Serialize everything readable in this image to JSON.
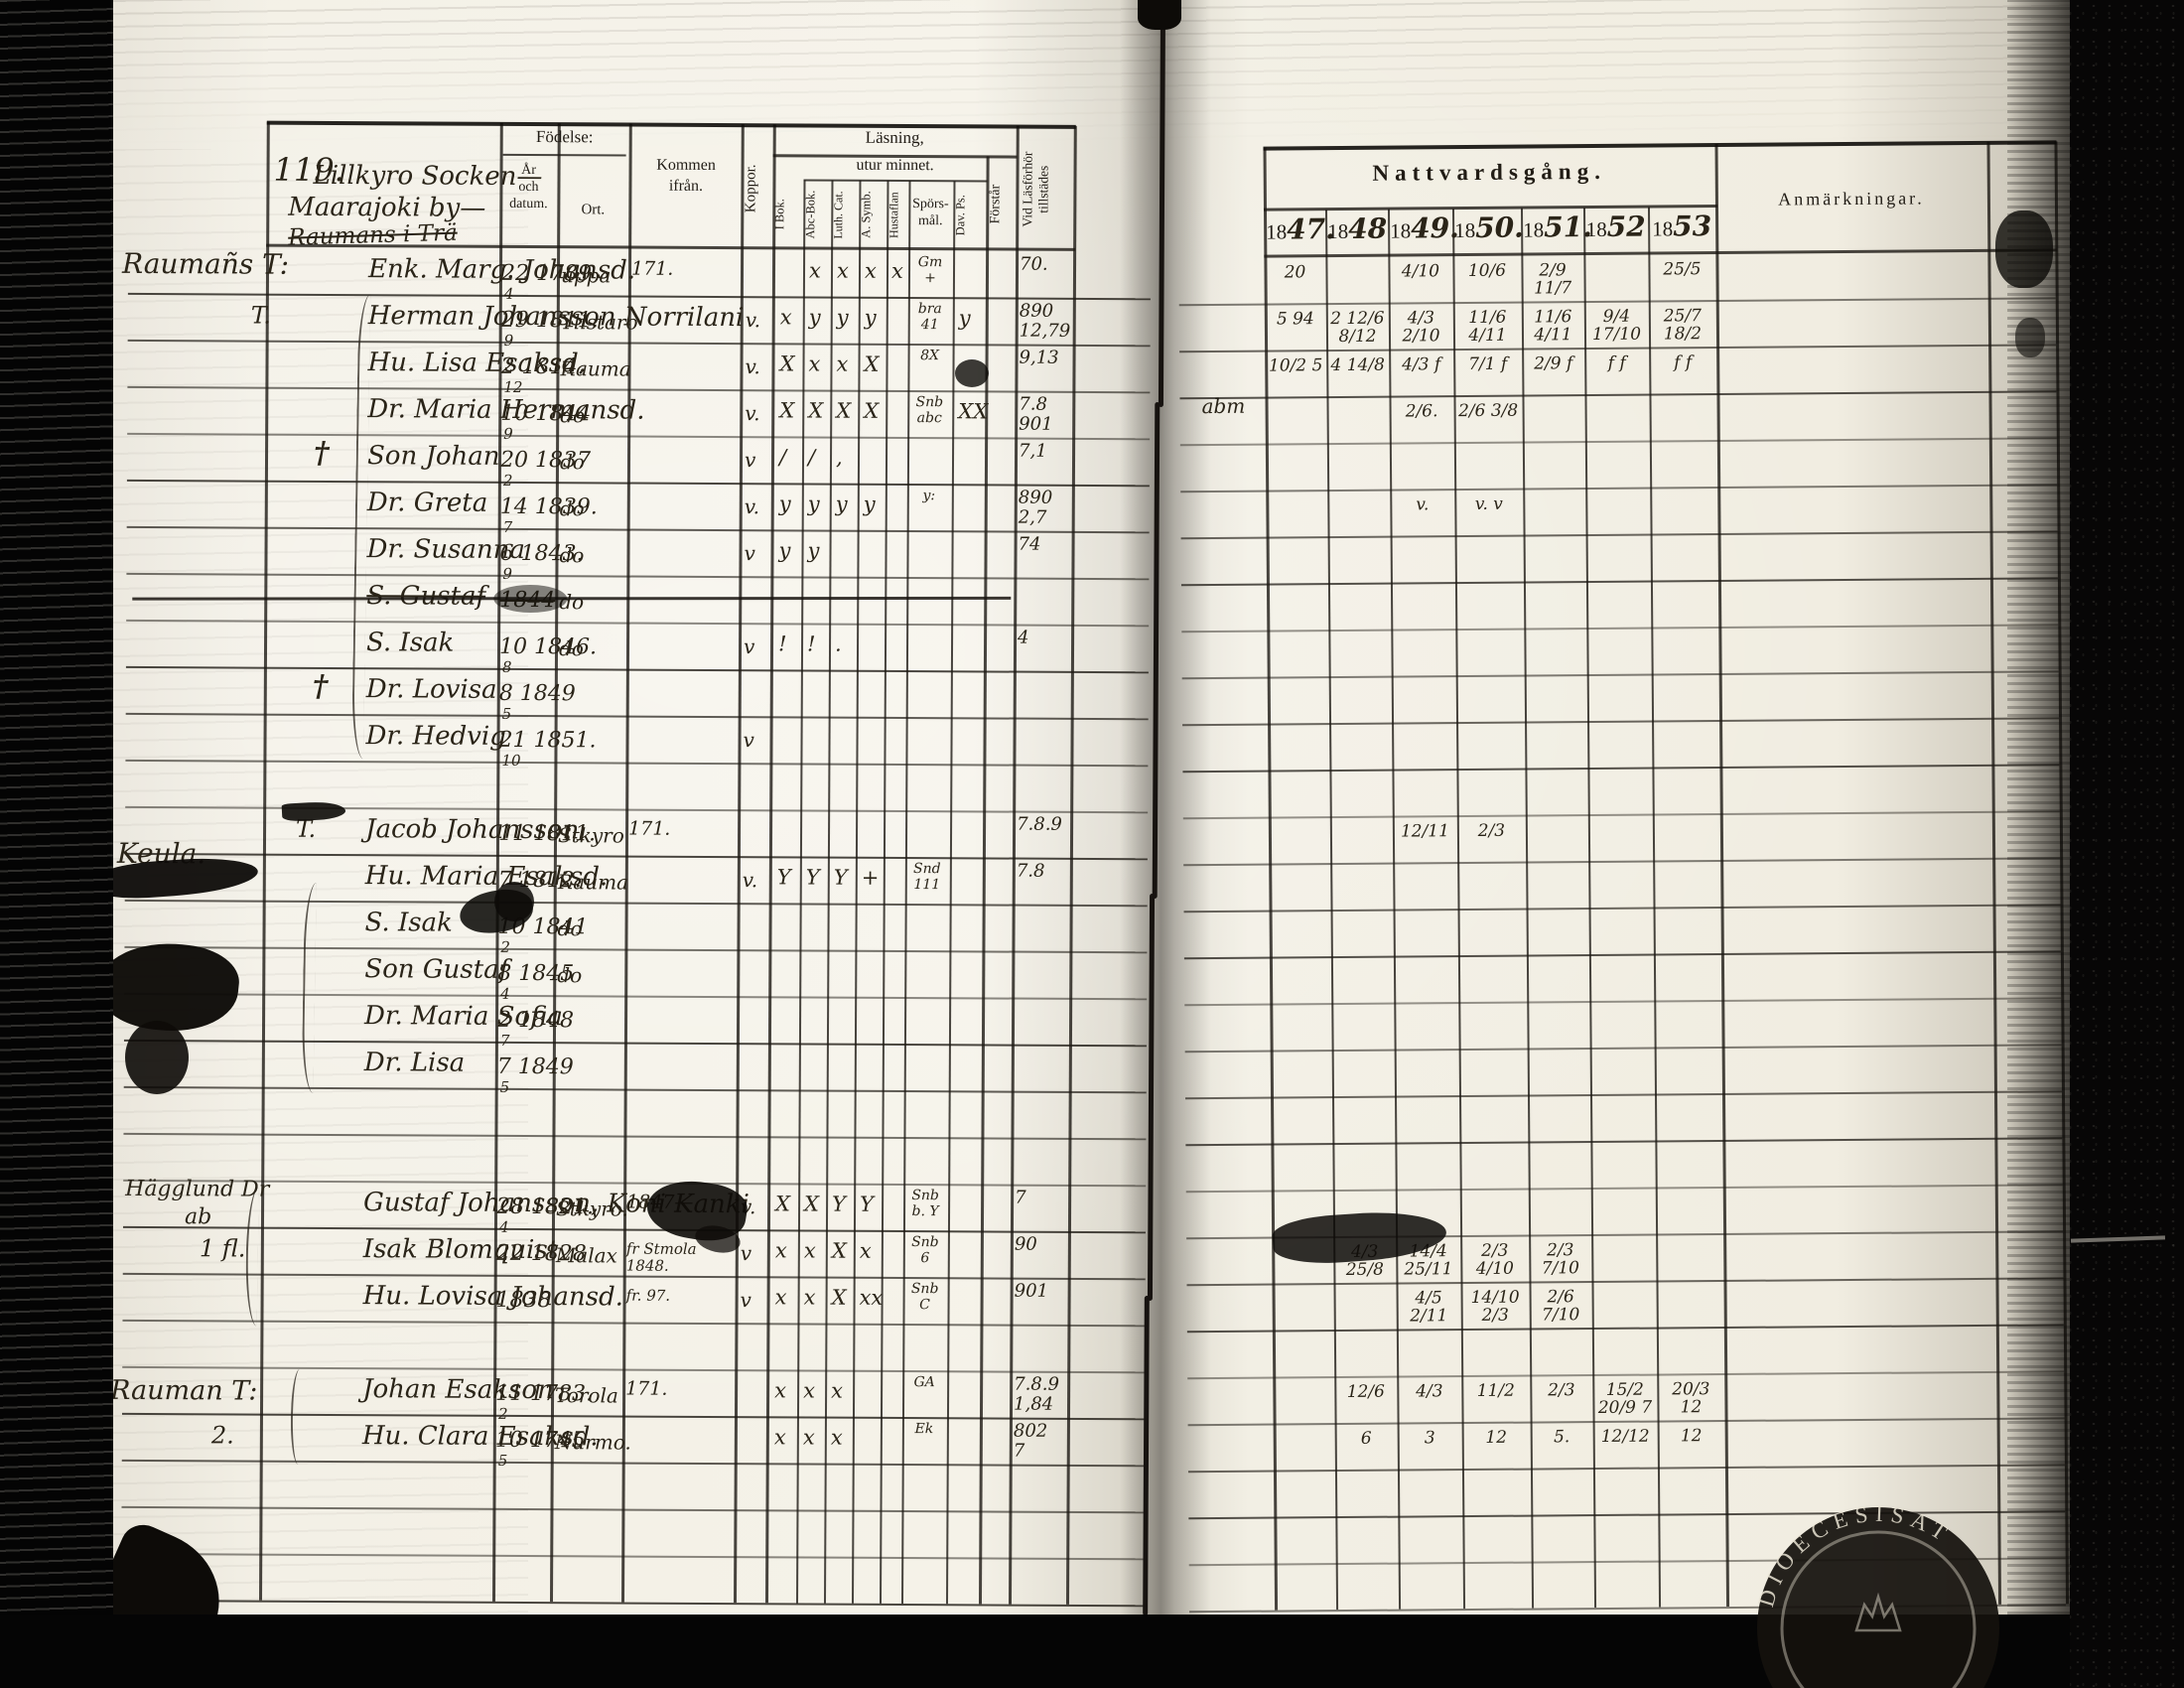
{
  "document": {
    "page_number": "119.",
    "title_lines": [
      "Lillkyro Socken—",
      "Maarajoki by—",
      "Raumans i Trä"
    ]
  },
  "left_page": {
    "headers": {
      "fodelse": "Födelse:",
      "ar_och_datum": "År\noch\ndatum.",
      "ort": "Ort.",
      "kommen_ifran": "Kommen\nifrån.",
      "koppor": "Koppor.",
      "lasning": "Läsning,",
      "utur_minnet": "utur minnet.",
      "i_bok": "I Bok.",
      "abc_bok": "Abc-Bok.",
      "luth_cat": "Luth. Cat.",
      "a_symb": "A. Symb.",
      "hustaflan": "Hustaflan",
      "sporsmal": "Spörs-\nmål.",
      "dav_ps": "Dav. Ps.",
      "forstar": "Förstår",
      "vid_lasforhor": "Vid Läsförhör\ntillstädes"
    },
    "groups": [
      {
        "margin_label": "Raumañs T:",
        "rows": [
          {
            "n": 0,
            "name": "Enk. Marg. Johansd.",
            "date": "22 1789",
            "day": "4",
            "ort": "uppa",
            "kommen": "171.",
            "marks": [
              "",
              "x",
              "x",
              "x",
              "x",
              "Gm +",
              "",
              ""
            ],
            "vid": [
              "70."
            ],
            "natt": [
              "20",
              "",
              "4/10",
              "10/6",
              "2/9 11/7",
              "",
              "25/5"
            ]
          },
          {
            "n": 1,
            "margin": "T.",
            "name": "Herman Johansson Norrilani",
            "date": "29 1811.",
            "day": "9",
            "ort": "Ylistaro",
            "koppor": "v.",
            "marks": [
              "x",
              "y",
              "y",
              "y",
              "",
              "bra 41",
              "y",
              ""
            ],
            "vid": [
              "890",
              "12,79"
            ],
            "natt": [
              "5 94",
              "2 12/6 8/12",
              "4/3 2/10",
              "11/6 4/11",
              "11/6 4/11",
              "9/4 17/10",
              "25/7 18/2"
            ]
          },
          {
            "n": 2,
            "name": "Hu. Lisa Esaksd.",
            "date": "2 1814.",
            "day": "12",
            "ort": "Rauma",
            "koppor": "v.",
            "marks": [
              "X",
              "x",
              "x",
              "X",
              "",
              "8X",
              "",
              ""
            ],
            "vid": [
              "9,13"
            ],
            "natt": [
              "10/2 5",
              "4 14/8",
              "4/3 f",
              "7/1 f",
              "2/9 f",
              "f f",
              "f f"
            ]
          },
          {
            "n": 3,
            "name": "Dr. Maria Hermansd.",
            "date": "10 1844",
            "day": "9",
            "ort": "do",
            "koppor": "v.",
            "marks": [
              "X",
              "X",
              "X",
              "X",
              "",
              "Snb abc",
              "XX",
              ""
            ],
            "vid": [
              "7.8",
              "901"
            ],
            "natt": [
              "",
              "",
              "2/6.",
              "2/6 3/8",
              "",
              "",
              ""
            ]
          },
          {
            "n": 4,
            "cross": true,
            "name": "Son Johan",
            "date": "20 1837",
            "day": "2",
            "ort": "do",
            "koppor": "v",
            "marks": [
              "/",
              "/",
              ",",
              "",
              "",
              "",
              "",
              ""
            ],
            "vid": [
              "7,1"
            ]
          },
          {
            "n": 5,
            "name": "Dr. Greta",
            "date": "14 1839.",
            "day": "7",
            "ort": "do",
            "koppor": "v.",
            "marks": [
              "y",
              "y",
              "y",
              "y",
              "",
              "y:",
              "",
              ""
            ],
            "vid": [
              "890",
              "2,7"
            ],
            "natt": [
              "",
              "",
              "v.",
              "v. v",
              "",
              "",
              ""
            ]
          },
          {
            "n": 6,
            "name": "Dr. Susanna",
            "date": "6 1843.",
            "day": "9",
            "ort": "do",
            "koppor": "v",
            "marks": [
              "y",
              "y",
              "",
              "",
              "",
              "",
              "",
              ""
            ],
            "vid": [
              "74"
            ]
          },
          {
            "n": 7,
            "name": "S. Gustaf",
            "struck": true,
            "date": "1844",
            "date_struck": true,
            "ort": "do"
          },
          {
            "n": 8,
            "name": "S. Isak",
            "date": "10 1846.",
            "day": "8",
            "ort": "do",
            "koppor": "v",
            "marks": [
              "!",
              "!",
              ".",
              "",
              "",
              "",
              "",
              ""
            ],
            "vid": [
              "4"
            ]
          },
          {
            "n": 9,
            "cross": true,
            "name": "Dr. Lovisa",
            "date": "8 1849",
            "day": "5"
          },
          {
            "n": 10,
            "name": "Dr. Hedvig",
            "date": "21 1851.",
            "day": "10",
            "koppor": "v"
          }
        ]
      },
      {
        "margin_label": "Keula.",
        "rows": [
          {
            "n": 12,
            "margin": "T.",
            "name": "Jacob Johansson",
            "date": "11 1811.",
            "ort": "Stkyro",
            "kommen": "171.",
            "vid": [
              "7.8.9"
            ],
            "natt": [
              "",
              "",
              "12/11",
              "2/3",
              "",
              "",
              ""
            ]
          },
          {
            "n": 13,
            "name": "Hu. Maria Esaksd.",
            "date": "7 1812.",
            "ort": "Rauma",
            "koppor": "v.",
            "marks": [
              "Y",
              "Y",
              "Y",
              "+",
              "",
              "Snd 111",
              "",
              ""
            ],
            "vid": [
              "7.8"
            ]
          },
          {
            "n": 14,
            "name": "S. Isak",
            "date": "10 1841",
            "day": "2",
            "ort": "do"
          },
          {
            "n": 15,
            "name": "Son Gustaf",
            "date": "8 1845",
            "day": "4",
            "ort": "do"
          },
          {
            "n": 16,
            "name": "Dr. Maria Sofia",
            "date": "2 1848",
            "day": "7"
          },
          {
            "n": 17,
            "name": "Dr. Lisa",
            "date": "7 1849",
            "day": "5"
          }
        ]
      },
      {
        "margin_label": "Hägglund Dr",
        "margin_label2": "ab",
        "rows": [
          {
            "n": 20,
            "name": "Gustaf Johansson, Koni Kanki",
            "date": "28 1821.",
            "day": "4",
            "ort": "Stkyro.",
            "kommen": "1847—",
            "koppor": "v.",
            "marks": [
              "X",
              "X",
              "Y",
              "Y",
              "",
              "Snb b. Y",
              "",
              ""
            ],
            "vid": [
              "7"
            ]
          },
          {
            "n": 21,
            "margin": "1 fl.",
            "name": "Isak Blomquist",
            "date": "22 1828",
            "ort": "Malax",
            "kommen": "fr Stmola 1848.",
            "koppor": "v",
            "marks": [
              "x",
              "x",
              "X",
              "x",
              "",
              "Snb 6",
              "",
              ""
            ],
            "vid": [
              "90"
            ],
            "natt": [
              "",
              "4/3 25/8",
              "14/4 25/11",
              "2/3 4/10",
              "2/3 7/10",
              "",
              ""
            ]
          },
          {
            "n": 22,
            "name": "Hu. Lovisa Johansd.",
            "date": "1838",
            "kommen": "fr. 97.",
            "koppor": "v",
            "marks": [
              "x",
              "x",
              "X",
              "xx",
              "",
              "Snb C",
              "",
              ""
            ],
            "vid": [
              "901"
            ],
            "natt": [
              "",
              "",
              "4/5 2/11",
              "14/10 2/3",
              "2/6 7/10",
              "",
              ""
            ]
          }
        ]
      },
      {
        "margin_label": "Rauman T:",
        "rows": [
          {
            "n": 24,
            "name": "Johan Esakson",
            "date": "11 1783.",
            "day": "2",
            "ort": "Torola",
            "kommen": "171.",
            "marks": [
              "x",
              "x",
              "x",
              "",
              "",
              "GA",
              "",
              ""
            ],
            "vid": [
              "7.8.9",
              "1,84"
            ],
            "natt": [
              "",
              "12/6",
              "4/3",
              "11/2",
              "2/3",
              "15/2 20/9 7",
              "20/3 12"
            ]
          },
          {
            "n": 25,
            "margin": "2.",
            "name": "Hu. Clara Esaksd.",
            "date": "10 1745",
            "day": "5",
            "ort": "Nurmo.",
            "marks": [
              "x",
              "x",
              "x",
              "",
              "",
              "Ek",
              "",
              ""
            ],
            "vid": [
              "802",
              "7"
            ],
            "natt": [
              "",
              "6",
              "3",
              "12",
              "5.",
              "12/12",
              "12"
            ]
          }
        ]
      }
    ]
  },
  "right_page": {
    "title": "Nattvardsgång.",
    "years": [
      "1847.",
      "1848",
      "1849.",
      "1850.",
      "1851.",
      "1852",
      "1853"
    ],
    "anmarkningar": "Anmärkningar.",
    "margin_note": "abm"
  },
  "stamp_text": "DIOECESISAT"
}
